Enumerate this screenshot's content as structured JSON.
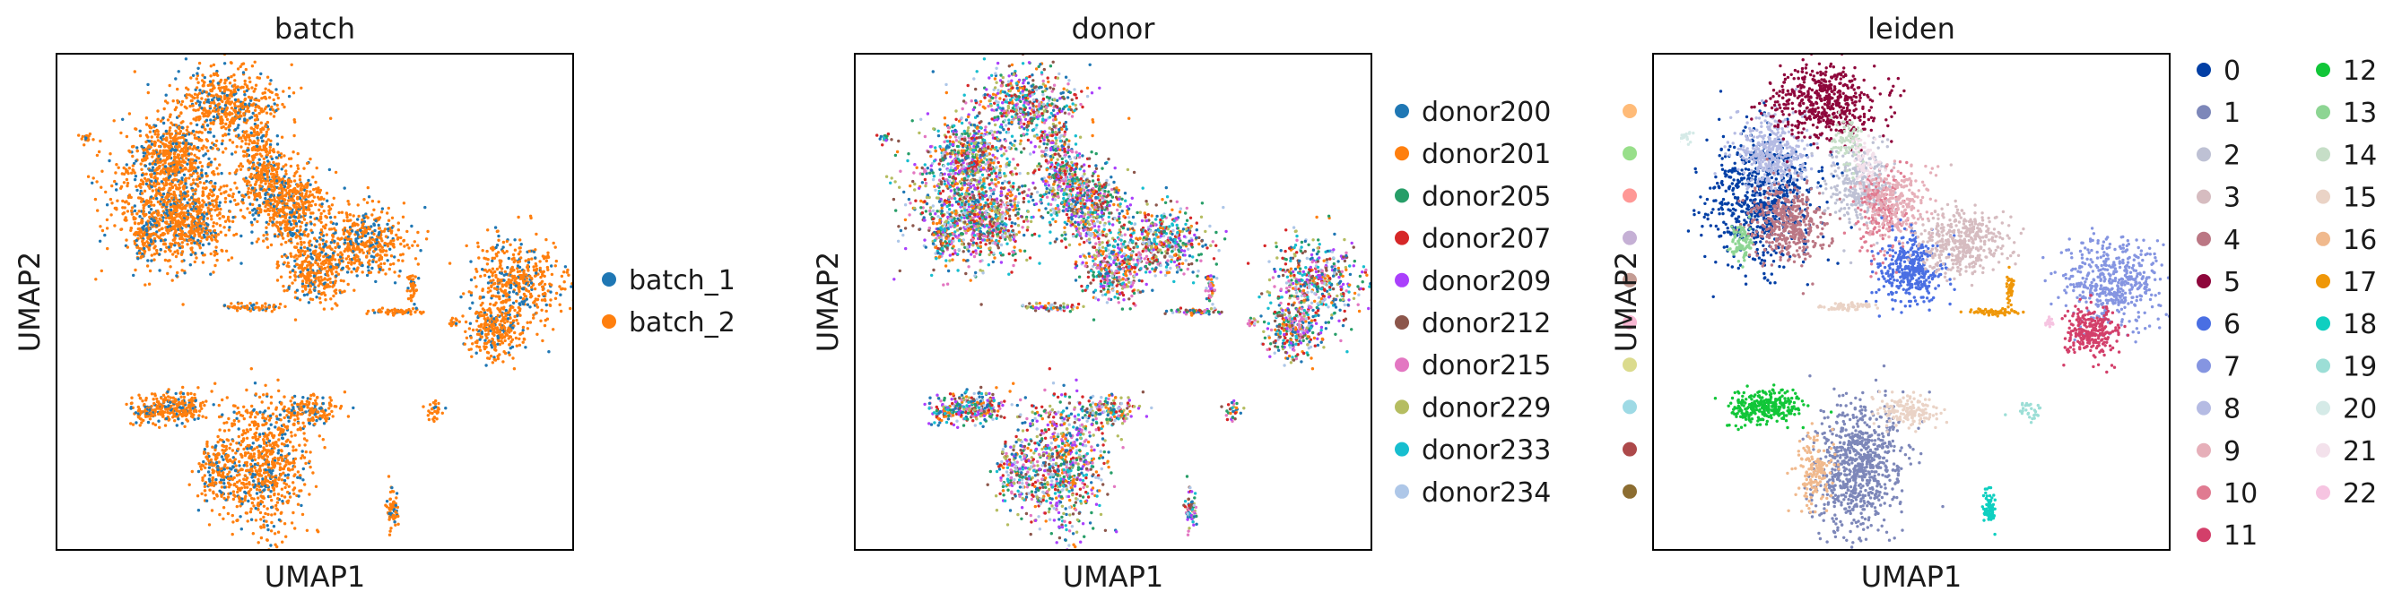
{
  "chart_data": [
    {
      "type": "scatter",
      "title": "batch",
      "xlabel": "UMAP1",
      "ylabel": "UMAP2",
      "legend_position": "right",
      "legend_columns": 1,
      "categories": [
        "batch_1",
        "batch_2"
      ],
      "colors": [
        "#1f77b4",
        "#ff7f0e"
      ]
    },
    {
      "type": "scatter",
      "title": "donor",
      "xlabel": "UMAP1",
      "ylabel": "UMAP2",
      "legend_position": "right",
      "legend_columns": 2,
      "categories": [
        "donor200",
        "donor201",
        "donor205",
        "donor207",
        "donor209",
        "donor212",
        "donor215",
        "donor229",
        "donor233",
        "donor234",
        "",
        "",
        "",
        "",
        "",
        "",
        "",
        "",
        "",
        ""
      ],
      "colors": [
        "#1f77b4",
        "#ff7f0e",
        "#279e68",
        "#d62728",
        "#aa40fc",
        "#8c564b",
        "#e377c2",
        "#b5bd61",
        "#17becf",
        "#aec7e8",
        "#ffbb78",
        "#98df8a",
        "#ff9896",
        "#c5b0d5",
        "#c49c94",
        "#f7b6d2",
        "#dbdb8d",
        "#9edae5",
        "#ad494a",
        "#8c6d31"
      ]
    },
    {
      "type": "scatter",
      "title": "leiden",
      "xlabel": "UMAP1",
      "ylabel": "UMAP2",
      "legend_position": "right",
      "legend_columns": 2,
      "categories": [
        "0",
        "1",
        "2",
        "3",
        "4",
        "5",
        "6",
        "7",
        "8",
        "9",
        "10",
        "11",
        "12",
        "13",
        "14",
        "15",
        "16",
        "17",
        "18",
        "19",
        "20",
        "21",
        "22"
      ],
      "colors": [
        "#023fa5",
        "#7d87b9",
        "#bec1d4",
        "#d6bcc0",
        "#bb7784",
        "#8e063b",
        "#4a6fe3",
        "#8595e1",
        "#b5bbe3",
        "#e6afb9",
        "#e07b91",
        "#d33f6a",
        "#11c638",
        "#8dd593",
        "#c6dec7",
        "#ead3c6",
        "#f0b98d",
        "#ef9708",
        "#0fcfc0",
        "#9cded6",
        "#d5eae7",
        "#f3e1eb",
        "#f6c4e1"
      ]
    }
  ]
}
